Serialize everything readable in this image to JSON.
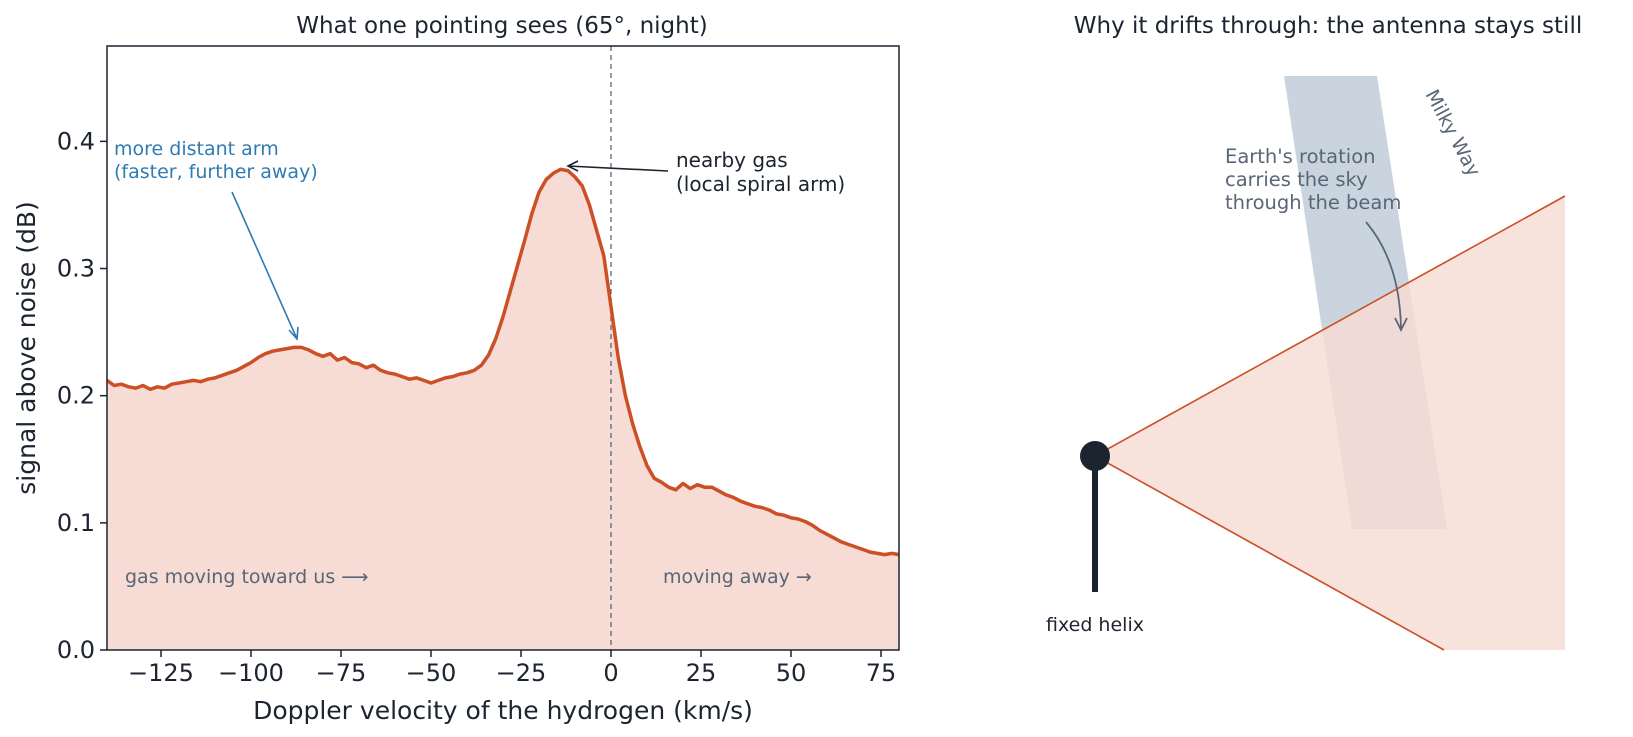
{
  "chart_data": [
    {
      "type": "area",
      "title": "What one pointing sees (65°, night)",
      "xlabel": "Doppler velocity of the hydrogen (km/s)",
      "ylabel": "signal above noise (dB)",
      "xlim": [
        -140,
        80
      ],
      "ylim": [
        0,
        0.475
      ],
      "xticks": [
        -125,
        -100,
        -75,
        -50,
        -25,
        0,
        25,
        50,
        75
      ],
      "xtick_labels": [
        "−125",
        "−100",
        "−75",
        "−50",
        "−25",
        "0",
        "25",
        "50",
        "75"
      ],
      "yticks": [
        0.0,
        0.1,
        0.2,
        0.3,
        0.4
      ],
      "ytick_labels": [
        "0.0",
        "0.1",
        "0.2",
        "0.3",
        "0.4"
      ],
      "grid": false,
      "reference_line_x": 0,
      "colors": {
        "line": "#cc4f25",
        "fill": "#f6dcd4",
        "annot_blue": "#2f7bb3",
        "annot_gray": "#5a6677",
        "dark": "#1c2430",
        "ref": "#5a6677"
      },
      "series": [
        {
          "x": [
            -140,
            -138,
            -136,
            -134,
            -132,
            -130,
            -128,
            -126,
            -124,
            -122,
            -120,
            -118,
            -116,
            -114,
            -112,
            -110,
            -108,
            -106,
            -104,
            -102,
            -100,
            -98,
            -96,
            -94,
            -92,
            -90,
            -88,
            -86,
            -84,
            -82,
            -80,
            -78,
            -76,
            -74,
            -72,
            -70,
            -68,
            -66,
            -64,
            -62,
            -60,
            -58,
            -56,
            -54,
            -52,
            -50,
            -48,
            -46,
            -44,
            -42,
            -40,
            -38,
            -36,
            -34,
            -32,
            -30,
            -28,
            -26,
            -24,
            -22,
            -20,
            -18,
            -16,
            -14,
            -12,
            -10,
            -8,
            -6,
            -4,
            -2,
            0,
            2,
            4,
            6,
            8,
            10,
            12,
            14,
            16,
            18,
            20,
            22,
            24,
            26,
            28,
            30,
            32,
            34,
            36,
            38,
            40,
            42,
            44,
            46,
            48,
            50,
            52,
            54,
            56,
            58,
            60,
            62,
            64,
            66,
            68,
            70,
            72,
            74,
            76,
            78,
            80
          ],
          "y": [
            0.212,
            0.208,
            0.209,
            0.207,
            0.206,
            0.208,
            0.205,
            0.207,
            0.206,
            0.209,
            0.21,
            0.211,
            0.212,
            0.211,
            0.213,
            0.214,
            0.216,
            0.218,
            0.22,
            0.223,
            0.226,
            0.23,
            0.233,
            0.235,
            0.236,
            0.237,
            0.238,
            0.238,
            0.236,
            0.233,
            0.231,
            0.233,
            0.228,
            0.23,
            0.226,
            0.225,
            0.222,
            0.224,
            0.22,
            0.218,
            0.217,
            0.215,
            0.213,
            0.214,
            0.212,
            0.21,
            0.212,
            0.214,
            0.215,
            0.217,
            0.218,
            0.22,
            0.224,
            0.232,
            0.245,
            0.262,
            0.282,
            0.302,
            0.322,
            0.343,
            0.36,
            0.37,
            0.375,
            0.378,
            0.377,
            0.372,
            0.365,
            0.35,
            0.33,
            0.31,
            0.27,
            0.23,
            0.2,
            0.178,
            0.16,
            0.145,
            0.135,
            0.132,
            0.128,
            0.126,
            0.131,
            0.127,
            0.13,
            0.128,
            0.128,
            0.125,
            0.122,
            0.12,
            0.117,
            0.115,
            0.113,
            0.112,
            0.11,
            0.107,
            0.106,
            0.104,
            0.103,
            0.101,
            0.098,
            0.094,
            0.091,
            0.088,
            0.085,
            0.083,
            0.081,
            0.079,
            0.077,
            0.076,
            0.075,
            0.076,
            0.075
          ]
        }
      ],
      "annotations": [
        {
          "text_lines": [
            "more distant arm",
            "(faster, further away)"
          ],
          "x": -86,
          "y": 0.24,
          "color": "blue"
        },
        {
          "text_lines": [
            "nearby gas",
            "(local spiral arm)"
          ],
          "x": -13,
          "y": 0.378,
          "color": "dark"
        },
        {
          "text": "gas moving toward us ⟶",
          "color": "gray"
        },
        {
          "text": "moving away →",
          "color": "gray"
        }
      ]
    },
    {
      "type": "diagram",
      "title": "Why it drifts through: the antenna stays still",
      "labels": {
        "milky_way": "Milky Way",
        "rotation": [
          "Earth's rotation",
          "carries the sky",
          "through the beam"
        ],
        "helix": "fixed helix"
      },
      "colors": {
        "band": "#b5c3d3",
        "beam_fill": "#f6dcd4",
        "beam_edge": "#cc4f25",
        "text": "#5a6677",
        "dark": "#1c2430"
      }
    }
  ]
}
